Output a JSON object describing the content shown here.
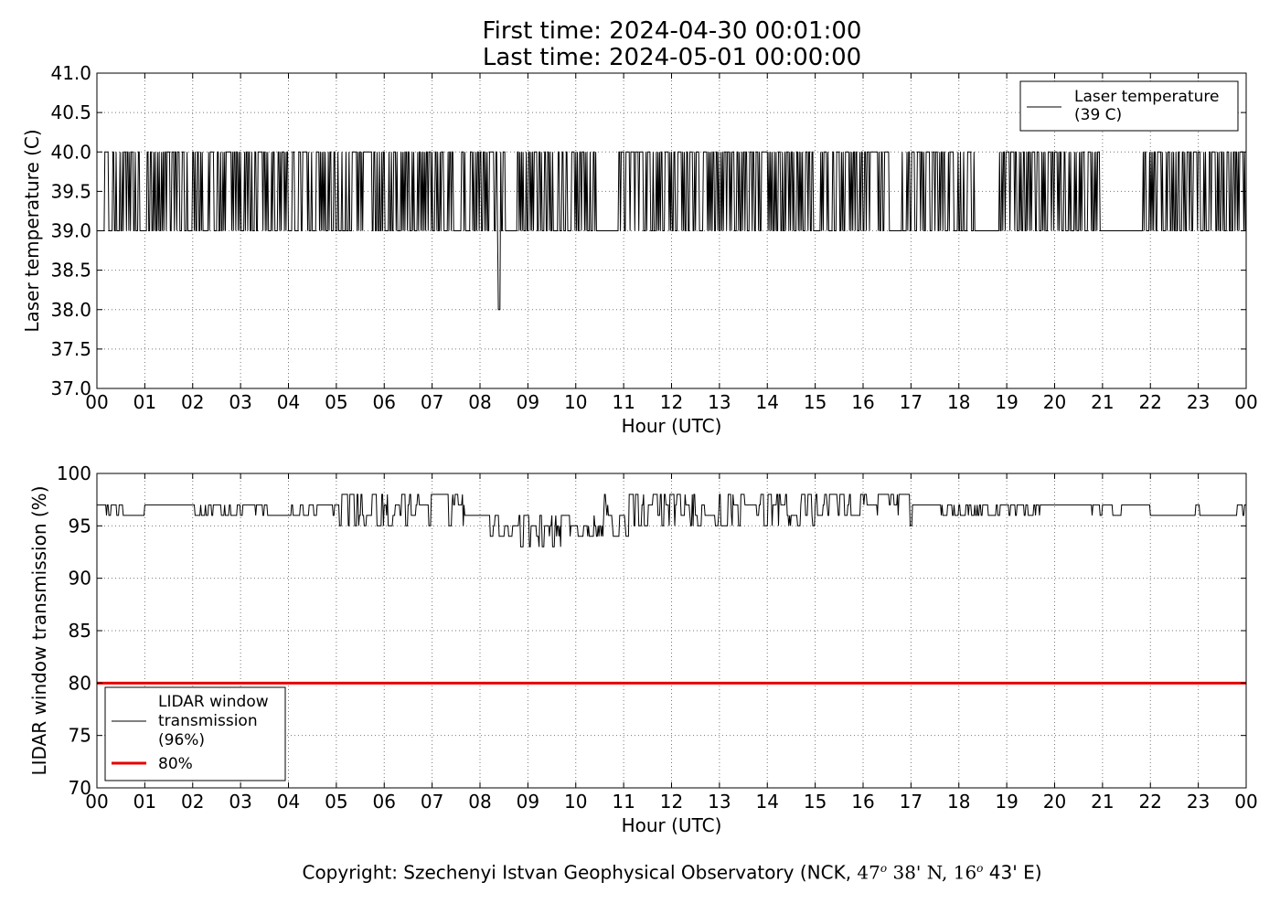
{
  "header": {
    "first_time": "First time: 2024-04-30 00:01:00",
    "last_time": "Last time: 2024-05-01 00:00:00"
  },
  "footer": {
    "copyright_prefix": "Copyright: Szechenyi Istvan Geophysical Observatory (NCK, ",
    "lat_deg": "47",
    "lat_sup": "o",
    "lat_min": " 38' N, ",
    "lon_deg": "16",
    "lon_sup": "o",
    "lon_min": " 43' E)"
  },
  "colors": {
    "series": "#000000",
    "threshold": "#e60000",
    "grid": "#888888"
  },
  "chart_data": [
    {
      "type": "line",
      "xlabel": "Hour (UTC)",
      "ylabel": "Laser temperature (C)",
      "xlim": [
        0,
        24
      ],
      "ylim": [
        37.0,
        41.0
      ],
      "x_ticks": [
        "00",
        "01",
        "02",
        "03",
        "04",
        "05",
        "06",
        "07",
        "08",
        "09",
        "10",
        "11",
        "12",
        "13",
        "14",
        "15",
        "16",
        "17",
        "18",
        "19",
        "20",
        "21",
        "22",
        "23",
        "00"
      ],
      "y_ticks": [
        "37.0",
        "37.5",
        "38.0",
        "38.5",
        "39.0",
        "39.5",
        "40.0",
        "40.5",
        "41.0"
      ],
      "grid": true,
      "legend_position": "top-right",
      "series": [
        {
          "name": "Laser temperature\n(39 C)",
          "legend_lines": [
            "Laser temperature",
            "(39 C)"
          ],
          "color": "#000000",
          "description": "1-minute samples toggling between 39.0 and 40.0; single dip to 38.0 near 08:24; flat 39.0 from about 20:55 to 21:50",
          "baseline": 39.0,
          "high": 40.0,
          "dip": {
            "x": 8.4,
            "y": 38.0
          },
          "flat_intervals": [
            [
              0.0,
              0.15
            ],
            [
              0.9,
              1.05
            ],
            [
              7.45,
              7.6
            ],
            [
              8.55,
              8.75
            ],
            [
              10.45,
              10.85
            ],
            [
              15.0,
              15.1
            ],
            [
              16.55,
              16.8
            ],
            [
              18.35,
              18.85
            ],
            [
              20.95,
              21.85
            ]
          ],
          "dense_intervals": [
            [
              0.15,
              0.9
            ],
            [
              1.05,
              7.45
            ],
            [
              7.6,
              8.4
            ],
            [
              8.75,
              10.45
            ],
            [
              10.85,
              15.0
            ],
            [
              15.1,
              16.55
            ],
            [
              16.8,
              18.35
            ],
            [
              18.85,
              20.95
            ],
            [
              21.85,
              24.0
            ]
          ]
        }
      ]
    },
    {
      "type": "line",
      "xlabel": "Hour (UTC)",
      "ylabel": "LIDAR window transmission (%)",
      "xlim": [
        0,
        24
      ],
      "ylim": [
        70,
        100
      ],
      "x_ticks": [
        "00",
        "01",
        "02",
        "03",
        "04",
        "05",
        "06",
        "07",
        "08",
        "09",
        "10",
        "11",
        "12",
        "13",
        "14",
        "15",
        "16",
        "17",
        "18",
        "19",
        "20",
        "21",
        "22",
        "23",
        "00"
      ],
      "y_ticks": [
        "70",
        "75",
        "80",
        "85",
        "90",
        "95",
        "100"
      ],
      "grid": true,
      "legend_position": "bottom-left",
      "series": [
        {
          "name": "LIDAR window\ntransmission\n(96%)",
          "legend_lines": [
            "LIDAR window",
            "transmission",
            "(96%)"
          ],
          "color": "#000000",
          "profile": [
            {
              "from": 0.0,
              "to": 1.0,
              "values": [
                96,
                97
              ]
            },
            {
              "from": 1.0,
              "to": 2.0,
              "values": [
                97
              ]
            },
            {
              "from": 2.0,
              "to": 5.0,
              "values": [
                96,
                97
              ]
            },
            {
              "from": 5.0,
              "to": 7.7,
              "values": [
                95,
                96,
                97,
                98
              ]
            },
            {
              "from": 7.7,
              "to": 8.3,
              "values": [
                94,
                95,
                96
              ]
            },
            {
              "from": 8.3,
              "to": 9.9,
              "values": [
                93,
                94,
                95,
                96
              ]
            },
            {
              "from": 9.9,
              "to": 10.6,
              "values": [
                94,
                95,
                96
              ]
            },
            {
              "from": 10.6,
              "to": 11.2,
              "values": [
                94,
                95,
                96,
                97,
                98
              ]
            },
            {
              "from": 11.2,
              "to": 15.0,
              "values": [
                95,
                96,
                97,
                98
              ]
            },
            {
              "from": 15.0,
              "to": 17.0,
              "values": [
                96,
                97,
                98
              ]
            },
            {
              "from": 17.0,
              "to": 17.6,
              "values": [
                97
              ]
            },
            {
              "from": 17.6,
              "to": 18.8,
              "values": [
                96,
                97
              ]
            },
            {
              "from": 18.8,
              "to": 19.7,
              "values": [
                96,
                97
              ]
            },
            {
              "from": 19.7,
              "to": 20.7,
              "values": [
                97
              ]
            },
            {
              "from": 20.7,
              "to": 21.4,
              "values": [
                96,
                97
              ]
            },
            {
              "from": 21.4,
              "to": 22.0,
              "values": [
                97
              ]
            },
            {
              "from": 22.0,
              "to": 22.95,
              "values": [
                96
              ]
            },
            {
              "from": 22.95,
              "to": 24.0,
              "values": [
                96,
                97
              ]
            }
          ],
          "spikes": [
            {
              "x": 17.0,
              "y": 95
            }
          ]
        },
        {
          "name": "80%",
          "color": "#e60000",
          "type": "hline",
          "y": 80
        }
      ]
    }
  ]
}
